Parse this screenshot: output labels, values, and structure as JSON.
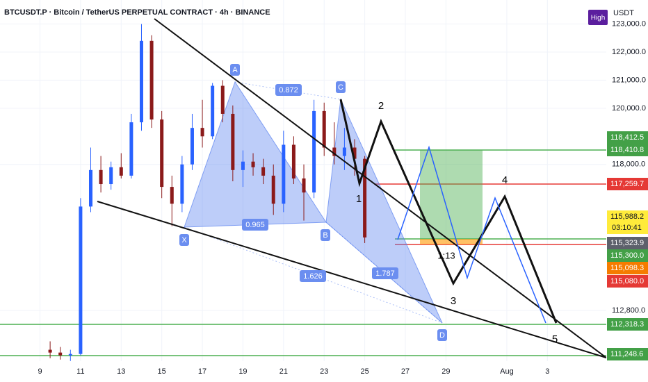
{
  "header": {
    "title": "BTCUSDT.P · Bitcoin / TetherUS PERPETUAL CONTRACT · 4h · BINANCE",
    "badge": "High",
    "currency": "USDT"
  },
  "chart_data": {
    "type": "candlestick",
    "x": [
      9.5,
      10,
      10.5,
      11,
      11.5,
      12,
      12.5,
      13,
      13.5,
      14,
      14.5,
      15,
      15.5,
      16,
      16.5,
      17,
      17.5,
      18,
      18.5,
      19,
      19.5,
      20,
      20.5,
      21,
      21.5,
      22,
      22.5,
      23,
      23.5,
      24,
      24.5,
      25
    ],
    "open": [
      111400,
      111300,
      111200,
      111250,
      116500,
      117800,
      117300,
      117900,
      117600,
      119500,
      122400,
      119600,
      117200,
      116600,
      118000,
      119300,
      119000,
      120800,
      119800,
      117800,
      118100,
      117900,
      117600,
      116600,
      118700,
      117500,
      117000,
      119900,
      118600,
      118300,
      118600,
      118200
    ],
    "high": [
      111700,
      111500,
      111400,
      116800,
      118600,
      118300,
      118100,
      118400,
      119800,
      123000,
      122600,
      119900,
      117600,
      118300,
      119800,
      120300,
      120900,
      121000,
      120100,
      118500,
      118400,
      118200,
      118000,
      119200,
      119000,
      118000,
      120300,
      120200,
      119500,
      119300,
      118900,
      118300
    ],
    "low": [
      111100,
      111050,
      111000,
      111200,
      116300,
      117000,
      117100,
      117500,
      117500,
      119200,
      119300,
      116800,
      115800,
      116300,
      117800,
      118600,
      118900,
      119500,
      117400,
      117200,
      117600,
      117300,
      116200,
      116300,
      117300,
      116000,
      116800,
      118300,
      118000,
      117800,
      117600,
      115200
    ],
    "close": [
      111300,
      111200,
      111250,
      116500,
      117800,
      117300,
      117900,
      117600,
      119500,
      122400,
      119600,
      117200,
      116600,
      118000,
      119300,
      119000,
      120800,
      119800,
      117800,
      118100,
      117900,
      117600,
      116600,
      118700,
      117500,
      117000,
      119900,
      118600,
      118300,
      118600,
      118200,
      115400
    ],
    "up_color": "#2962ff",
    "down_color": "#8b1a1a",
    "xlim": [
      7.03,
      36.9
    ],
    "xticks": [
      9,
      11,
      13,
      15,
      17,
      19,
      21,
      23,
      25,
      27,
      29,
      {
        "value": 32,
        "label": "Aug"
      },
      {
        "value": 34,
        "label": "3"
      }
    ],
    "ylim": [
      110994,
      123855
    ],
    "yticks": [
      {
        "value": 123000,
        "label": "123,000.0"
      },
      {
        "value": 122000,
        "label": "122,000.0"
      },
      {
        "value": 121000,
        "label": "121,000.0"
      },
      {
        "value": 120000,
        "label": "120,000.0"
      },
      {
        "value": 118000,
        "label": "118,000.0"
      },
      {
        "value": 112800,
        "label": "112,800.0"
      }
    ]
  },
  "price_tags": [
    "118,412.5",
    "118,410.8",
    "117,259.7",
    "115,988.2",
    "03:10:41",
    "115,323.9",
    "115,300.0",
    "115,098.3",
    "115,080.0",
    "112,318.3",
    "111,248.6"
  ],
  "pattern_labels": [
    "X",
    "A",
    "B",
    "C",
    "D"
  ],
  "ratios": [
    "0.872",
    "0.965",
    "1.626",
    "1.787"
  ],
  "waves": [
    "1",
    "2",
    "3",
    "4",
    "5"
  ],
  "risk_label": "1:13"
}
